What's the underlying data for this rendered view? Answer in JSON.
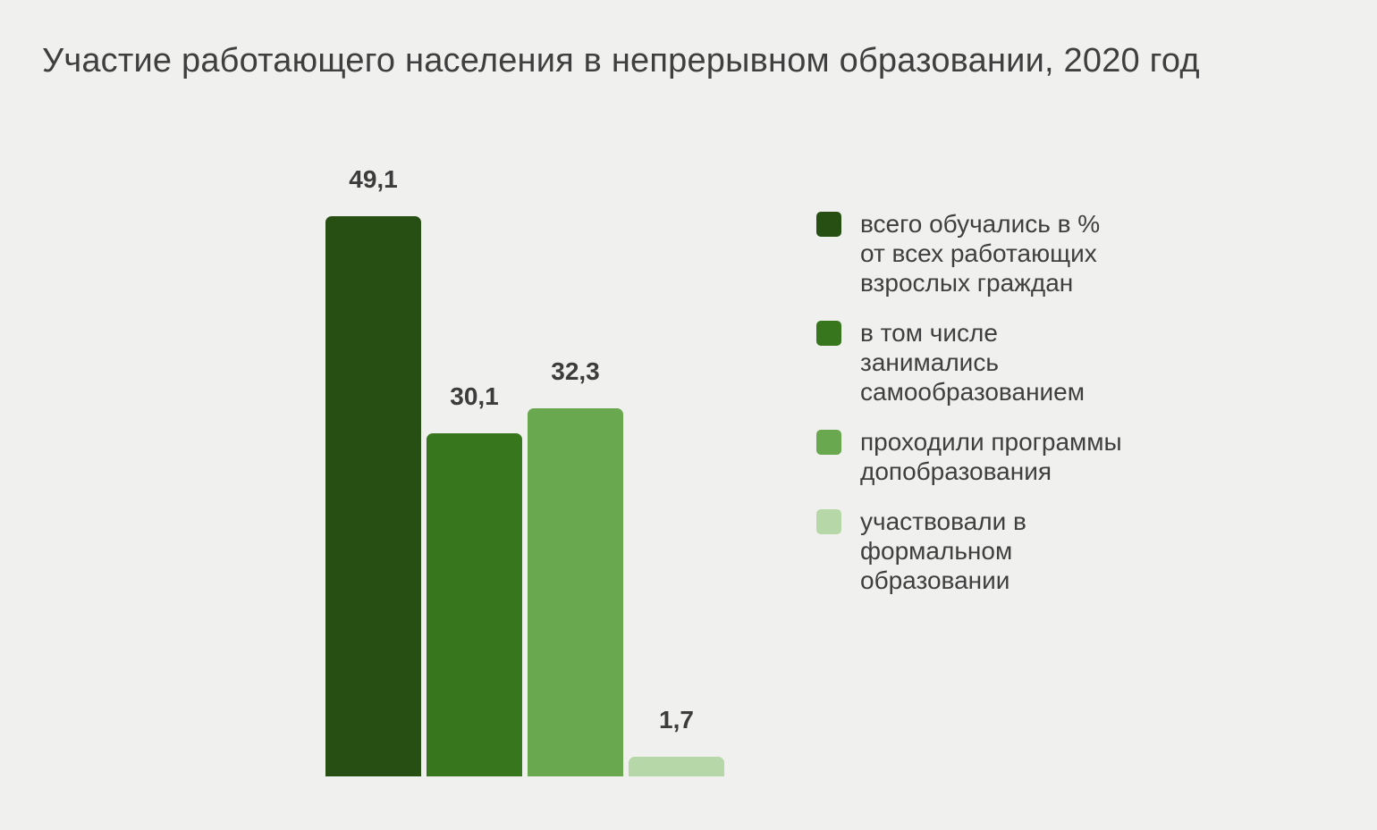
{
  "chart_data": {
    "type": "bar",
    "title": "Участие работающего населения в непрерывном образовании, 2020 год",
    "categories": [
      "всего обучались в % от всех работающих взрослых граждан",
      "в том числе занимались самообразованием",
      "проходили программы допобразования",
      "участвовали в формальном образовании"
    ],
    "values": [
      49.1,
      30.1,
      32.3,
      1.7
    ],
    "value_labels": [
      "49,1",
      "30,1",
      "32,3",
      "1,7"
    ],
    "bar_colors": [
      "#274e13",
      "#38761d",
      "#6aa84f",
      "#b6d7a8"
    ],
    "legend_position": "right",
    "legend": [
      {
        "color": "#274e13",
        "label_lines": [
          "всего обучались в %",
          "от всех работающих",
          "взрослых граждан"
        ]
      },
      {
        "color": "#38761d",
        "label_lines": [
          "в том числе",
          "занимались",
          "самообразованием"
        ]
      },
      {
        "color": "#6aa84f",
        "label_lines": [
          "проходили программы",
          "допобразования"
        ]
      },
      {
        "color": "#b6d7a8",
        "label_lines": [
          "участвовали в",
          "формальном",
          "образовании"
        ]
      }
    ],
    "xlabel": "",
    "ylabel": "",
    "ylim": [
      0,
      52
    ],
    "grid": false,
    "axes_visible": false,
    "background_color": "#f0f0ee",
    "title_color": "#3f3f3f",
    "label_color": "#3c3c3c"
  }
}
